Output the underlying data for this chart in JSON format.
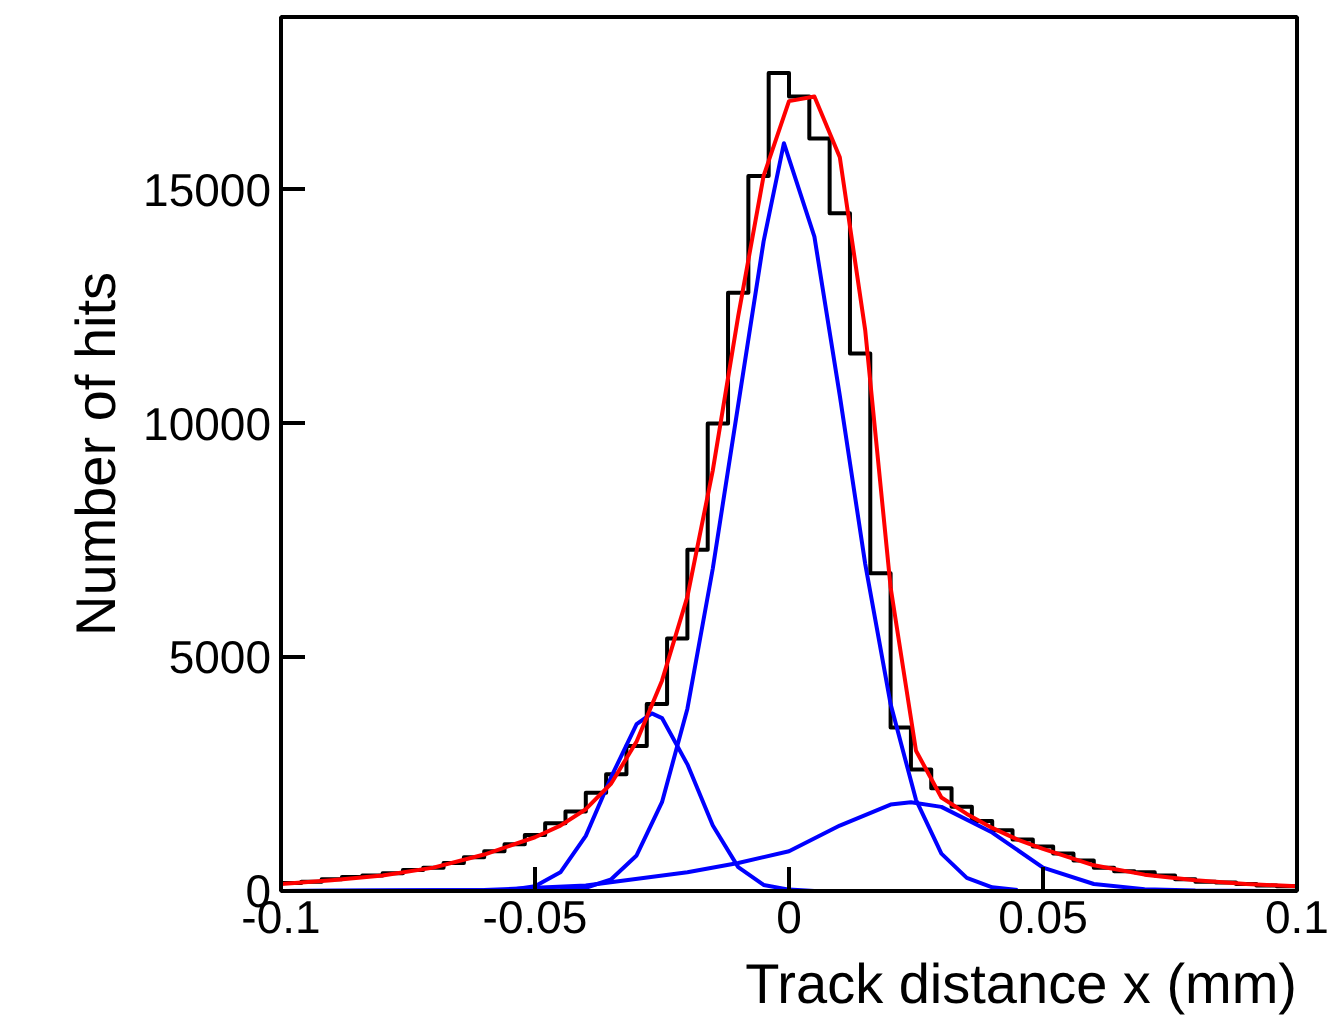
{
  "chart_data": {
    "type": "histogram",
    "xlabel": "Track distance x (mm)",
    "ylabel": "Number of hits",
    "bins": [
      -0.1,
      -0.096,
      -0.092,
      -0.088,
      -0.084,
      -0.08,
      -0.076,
      -0.072,
      -0.068,
      -0.064,
      -0.06,
      -0.056,
      -0.052,
      -0.048,
      -0.044,
      -0.04,
      -0.036,
      -0.032,
      -0.028,
      -0.024,
      -0.02,
      -0.016,
      -0.012,
      -0.008,
      -0.004,
      0,
      0.004,
      0.008,
      0.012,
      0.016,
      0.02,
      0.024,
      0.028,
      0.032,
      0.036,
      0.04,
      0.044,
      0.048,
      0.052,
      0.056,
      0.06,
      0.064,
      0.068,
      0.072,
      0.076,
      0.08,
      0.084,
      0.088,
      0.092,
      0.096,
      0.1
    ],
    "values": [
      170,
      200,
      250,
      300,
      330,
      380,
      450,
      500,
      600,
      720,
      850,
      1000,
      1200,
      1450,
      1700,
      2100,
      2500,
      3100,
      4000,
      5400,
      7300,
      10000,
      12800,
      15300,
      17500,
      17000,
      16100,
      14500,
      11500,
      6800,
      3500,
      2600,
      2200,
      1800,
      1500,
      1300,
      1100,
      950,
      800,
      650,
      500,
      420,
      400,
      330,
      250,
      200,
      180,
      150,
      120,
      100
    ],
    "color": "#000000",
    "series": [
      {
        "type": "line",
        "color": "#0000ff",
        "x": [
          -0.1,
          -0.045,
          -0.04,
          -0.035,
          -0.03,
          -0.025,
          -0.02,
          -0.015,
          -0.01,
          -0.005,
          -0.001,
          0.005,
          0.01,
          0.015,
          0.02,
          0.025,
          0.03,
          0.035,
          0.04,
          0.045,
          0.1
        ],
        "values": [
          0,
          20,
          70,
          250,
          760,
          1900,
          3900,
          6900,
          10400,
          13900,
          16000,
          14000,
          10600,
          7000,
          4000,
          1950,
          800,
          280,
          80,
          20,
          0
        ]
      },
      {
        "type": "line",
        "color": "#0000ff",
        "x": [
          -0.1,
          -0.06,
          -0.055,
          -0.05,
          -0.045,
          -0.04,
          -0.035,
          -0.03,
          -0.027,
          -0.025,
          -0.02,
          -0.015,
          -0.01,
          -0.005,
          0,
          0.005,
          0.1
        ],
        "values": [
          0,
          10,
          20,
          100,
          400,
          1180,
          2440,
          3570,
          3800,
          3700,
          2710,
          1400,
          510,
          130,
          30,
          0,
          0
        ]
      },
      {
        "type": "line",
        "color": "#0000ff",
        "x": [
          -0.1,
          -0.06,
          -0.04,
          -0.02,
          -0.01,
          0,
          0.01,
          0.02,
          0.024,
          0.03,
          0.04,
          0.05,
          0.06,
          0.07,
          0.08,
          0.1
        ],
        "values": [
          0,
          20,
          120,
          400,
          600,
          850,
          1400,
          1850,
          1900,
          1800,
          1250,
          500,
          150,
          40,
          10,
          0
        ]
      },
      {
        "type": "line",
        "color": "#ff0000",
        "x": [
          -0.1,
          -0.09,
          -0.08,
          -0.07,
          -0.06,
          -0.05,
          -0.045,
          -0.04,
          -0.035,
          -0.03,
          -0.025,
          -0.02,
          -0.015,
          -0.01,
          -0.005,
          0,
          0.005,
          0.01,
          0.015,
          0.02,
          0.025,
          0.03,
          0.035,
          0.04,
          0.045,
          0.05,
          0.06,
          0.07,
          0.08,
          0.09,
          0.1
        ],
        "values": [
          150,
          230,
          330,
          500,
          780,
          1150,
          1400,
          1750,
          2300,
          3200,
          4500,
          6300,
          9000,
          12300,
          15300,
          16900,
          17000,
          15700,
          12000,
          6500,
          3000,
          2000,
          1650,
          1350,
          1100,
          900,
          550,
          350,
          230,
          150,
          100
        ]
      }
    ],
    "xlim": [
      -0.1,
      0.1
    ],
    "ylim": [
      0,
      18700
    ],
    "xticks": [
      {
        "value": -0.1,
        "label": "-0.1"
      },
      {
        "value": -0.05,
        "label": "-0.05"
      },
      0,
      {
        "value": 0.05,
        "label": "0.05"
      },
      {
        "value": 0.1,
        "label": "0.1"
      }
    ],
    "yticks": [
      0,
      5000,
      10000,
      15000
    ],
    "grid": false
  }
}
